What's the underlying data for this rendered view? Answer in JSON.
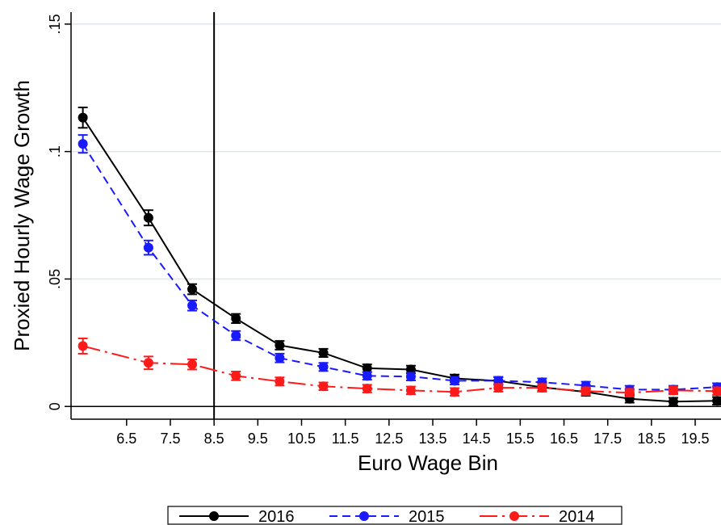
{
  "chart_data": {
    "type": "line",
    "x_label": "Euro Wage Bin",
    "y_label": "Proxied Hourly Wage Growth",
    "x": [
      5.5,
      7,
      8,
      9,
      10,
      11,
      12,
      13,
      14,
      15,
      16,
      17,
      18,
      19,
      20
    ],
    "xlim": [
      5.23,
      20.09
    ],
    "xticks": [
      6.5,
      7.5,
      8.5,
      9.5,
      10.5,
      11.5,
      12.5,
      13.5,
      14.5,
      15.5,
      16.5,
      17.5,
      18.5,
      19.5
    ],
    "ylim": [
      -0.005,
      0.1547
    ],
    "yticks": [
      0,
      {
        "value": 0.05,
        "label": ".05"
      },
      {
        "value": 0.1,
        "label": ".1"
      },
      {
        "value": 0.15,
        "label": ".15"
      }
    ],
    "grid": true,
    "vline": 8.5,
    "legend": "bottom",
    "series": [
      {
        "name": "2016",
        "color": "#000000",
        "dash": "solid",
        "values": [
          0.1133,
          0.074,
          0.046,
          0.0345,
          0.024,
          0.021,
          0.015,
          0.0145,
          0.011,
          0.01,
          0.0075,
          0.0057,
          0.003,
          0.0019,
          0.0022
        ],
        "error": [
          0.004,
          0.003,
          0.002,
          0.0018,
          0.0017,
          0.0016,
          0.0015,
          0.0015,
          0.0015,
          0.0015,
          0.0015,
          0.0015,
          0.0015,
          0.0015,
          0.0015
        ]
      },
      {
        "name": "2015",
        "color": "#1a1aff",
        "dash": "dashed",
        "values": [
          0.103,
          0.0623,
          0.0396,
          0.0278,
          0.019,
          0.0155,
          0.012,
          0.0117,
          0.0101,
          0.0101,
          0.0095,
          0.0082,
          0.0066,
          0.0066,
          0.0076
        ],
        "error": [
          0.0035,
          0.0028,
          0.002,
          0.0018,
          0.0017,
          0.0016,
          0.0015,
          0.0015,
          0.0015,
          0.0015,
          0.0015,
          0.0015,
          0.0015,
          0.0015,
          0.0015
        ]
      },
      {
        "name": "2014",
        "color": "#ff1a1a",
        "dash": "dashdot",
        "values": [
          0.0237,
          0.0171,
          0.0165,
          0.012,
          0.0098,
          0.0079,
          0.007,
          0.0063,
          0.0057,
          0.0073,
          0.0073,
          0.006,
          0.0054,
          0.0063,
          0.006
        ],
        "error": [
          0.003,
          0.0025,
          0.002,
          0.0017,
          0.0016,
          0.0015,
          0.0015,
          0.0015,
          0.0015,
          0.0015,
          0.0015,
          0.0015,
          0.0015,
          0.0015,
          0.0015
        ]
      }
    ]
  }
}
